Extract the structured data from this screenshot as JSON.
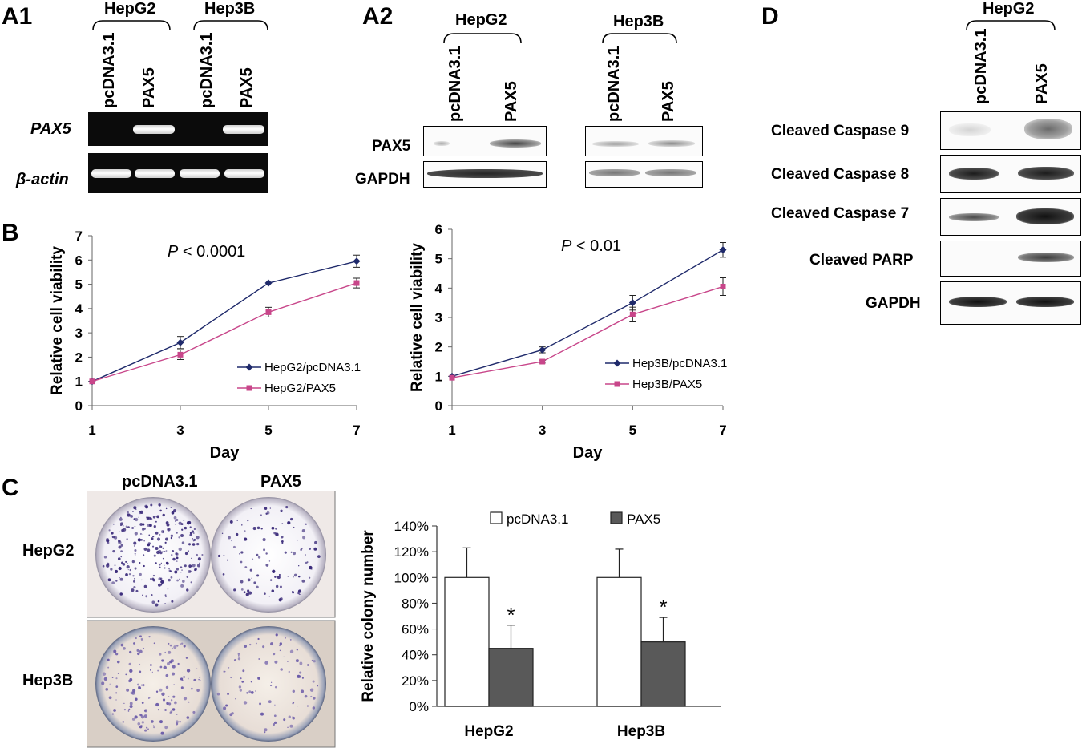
{
  "panels": {
    "A1": {
      "letter": "A1",
      "groups": [
        "HepG2",
        "Hep3B"
      ],
      "lanes": [
        "pcDNA3.1",
        "PAX5",
        "pcDNA3.1",
        "PAX5"
      ],
      "rows": [
        "PAX5",
        "β-actin"
      ]
    },
    "A2": {
      "letter": "A2",
      "groups": [
        "HepG2",
        "Hep3B"
      ],
      "lanes": [
        "pcDNA3.1",
        "PAX5",
        "pcDNA3.1",
        "PAX5"
      ],
      "rows": [
        "PAX5",
        "GAPDH"
      ]
    },
    "B": {
      "letter": "B"
    },
    "C": {
      "letter": "C",
      "columns": [
        "pcDNA3.1",
        "PAX5"
      ],
      "rows": [
        "HepG2",
        "Hep3B"
      ]
    },
    "D": {
      "letter": "D",
      "group": "HepG2",
      "lanes": [
        "pcDNA3.1",
        "PAX5"
      ],
      "rows": [
        "Cleaved Caspase 9",
        "Cleaved Caspase 8",
        "Cleaved Caspase 7",
        "Cleaved PARP",
        "GAPDH"
      ]
    }
  },
  "chart_data": [
    {
      "type": "line",
      "panel": "B-left",
      "xlabel": "Day",
      "ylabel": "Relative cell viability",
      "annotation": "P < 0.0001",
      "x": [
        1,
        3,
        5,
        7
      ],
      "xticks": [
        "1",
        "3",
        "5",
        "7"
      ],
      "ylim": [
        0,
        7
      ],
      "yticks": [
        "0",
        "1",
        "2",
        "3",
        "4",
        "5",
        "6",
        "7"
      ],
      "legend_position": "right",
      "series": [
        {
          "name": "HepG2/pcDNA3.1",
          "values": [
            1.0,
            2.6,
            5.05,
            5.95
          ],
          "errors": [
            0.0,
            0.25,
            0.0,
            0.25
          ],
          "color": "#1f2a6b",
          "marker": "diamond"
        },
        {
          "name": "HepG2/PAX5",
          "values": [
            1.0,
            2.1,
            3.85,
            5.05
          ],
          "errors": [
            0.0,
            0.2,
            0.2,
            0.2
          ],
          "color": "#c8468a",
          "marker": "square"
        }
      ]
    },
    {
      "type": "line",
      "panel": "B-right",
      "xlabel": "Day",
      "ylabel": "Relative cell viability",
      "annotation": "P < 0.01",
      "x": [
        1,
        3,
        5,
        7
      ],
      "xticks": [
        "1",
        "3",
        "5",
        "7"
      ],
      "ylim": [
        0,
        6
      ],
      "yticks": [
        "0",
        "1",
        "2",
        "3",
        "4",
        "5",
        "6"
      ],
      "legend_position": "right",
      "series": [
        {
          "name": "Hep3B/pcDNA3.1",
          "values": [
            1.0,
            1.9,
            3.5,
            5.3
          ],
          "errors": [
            0.0,
            0.1,
            0.25,
            0.25
          ],
          "color": "#1f2a6b",
          "marker": "diamond"
        },
        {
          "name": "Hep3B/PAX5",
          "values": [
            0.95,
            1.5,
            3.1,
            4.05
          ],
          "errors": [
            0.0,
            0.05,
            0.25,
            0.3
          ],
          "color": "#c8468a",
          "marker": "square"
        }
      ]
    },
    {
      "type": "bar",
      "panel": "C-right",
      "ylabel": "Relative colony number",
      "categories": [
        "HepG2",
        "Hep3B"
      ],
      "ylim": [
        0,
        140
      ],
      "yticks": [
        "0%",
        "20%",
        "40%",
        "60%",
        "80%",
        "100%",
        "120%",
        "140%"
      ],
      "legend_position": "top",
      "significance": [
        "*",
        "*"
      ],
      "series": [
        {
          "name": "pcDNA3.1",
          "values": [
            100,
            100
          ],
          "errors": [
            23,
            22
          ],
          "color": "#ffffff"
        },
        {
          "name": "PAX5",
          "values": [
            45,
            50
          ],
          "errors": [
            18,
            19
          ],
          "color": "#595959"
        }
      ]
    }
  ]
}
